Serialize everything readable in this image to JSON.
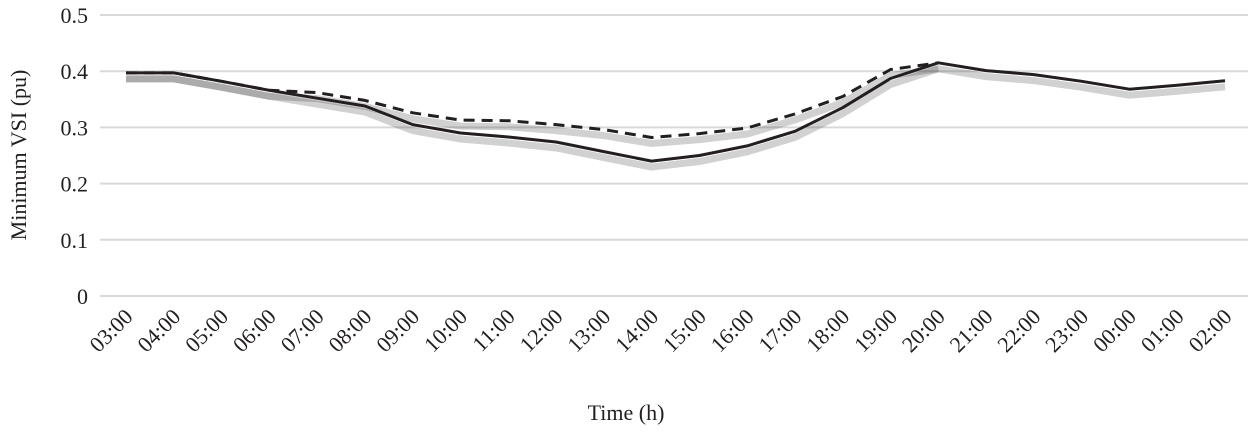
{
  "chart_data": {
    "type": "line",
    "xlabel": "Time (h)",
    "ylabel": "Minimum VSI (pu)",
    "ylim": [
      0,
      0.5
    ],
    "yticks": [
      "0",
      "0.1",
      "0.2",
      "0.3",
      "0.4",
      "0.5"
    ],
    "grid": true,
    "categories": [
      "03:00",
      "04:00",
      "05:00",
      "06:00",
      "07:00",
      "08:00",
      "09:00",
      "10:00",
      "11:00",
      "12:00",
      "13:00",
      "14:00",
      "15:00",
      "16:00",
      "17:00",
      "18:00",
      "19:00",
      "20:00",
      "21:00",
      "22:00",
      "23:00",
      "00:00",
      "01:00",
      "02:00"
    ],
    "series": [
      {
        "style": "solid",
        "color": "#231f20",
        "values": [
          0.397,
          0.397,
          0.382,
          0.366,
          0.352,
          0.338,
          0.305,
          0.29,
          0.283,
          0.274,
          0.257,
          0.24,
          0.25,
          0.267,
          0.293,
          0.335,
          0.387,
          0.415,
          0.401,
          0.394,
          0.382,
          0.368,
          0.375,
          0.383
        ]
      },
      {
        "style": "dashed",
        "color": "#231f20",
        "values": [
          0.397,
          0.397,
          0.382,
          0.366,
          0.362,
          0.348,
          0.326,
          0.313,
          0.312,
          0.305,
          0.296,
          0.282,
          0.289,
          0.299,
          0.324,
          0.355,
          0.403,
          0.415,
          null,
          null,
          null,
          null,
          null,
          null
        ]
      }
    ]
  }
}
